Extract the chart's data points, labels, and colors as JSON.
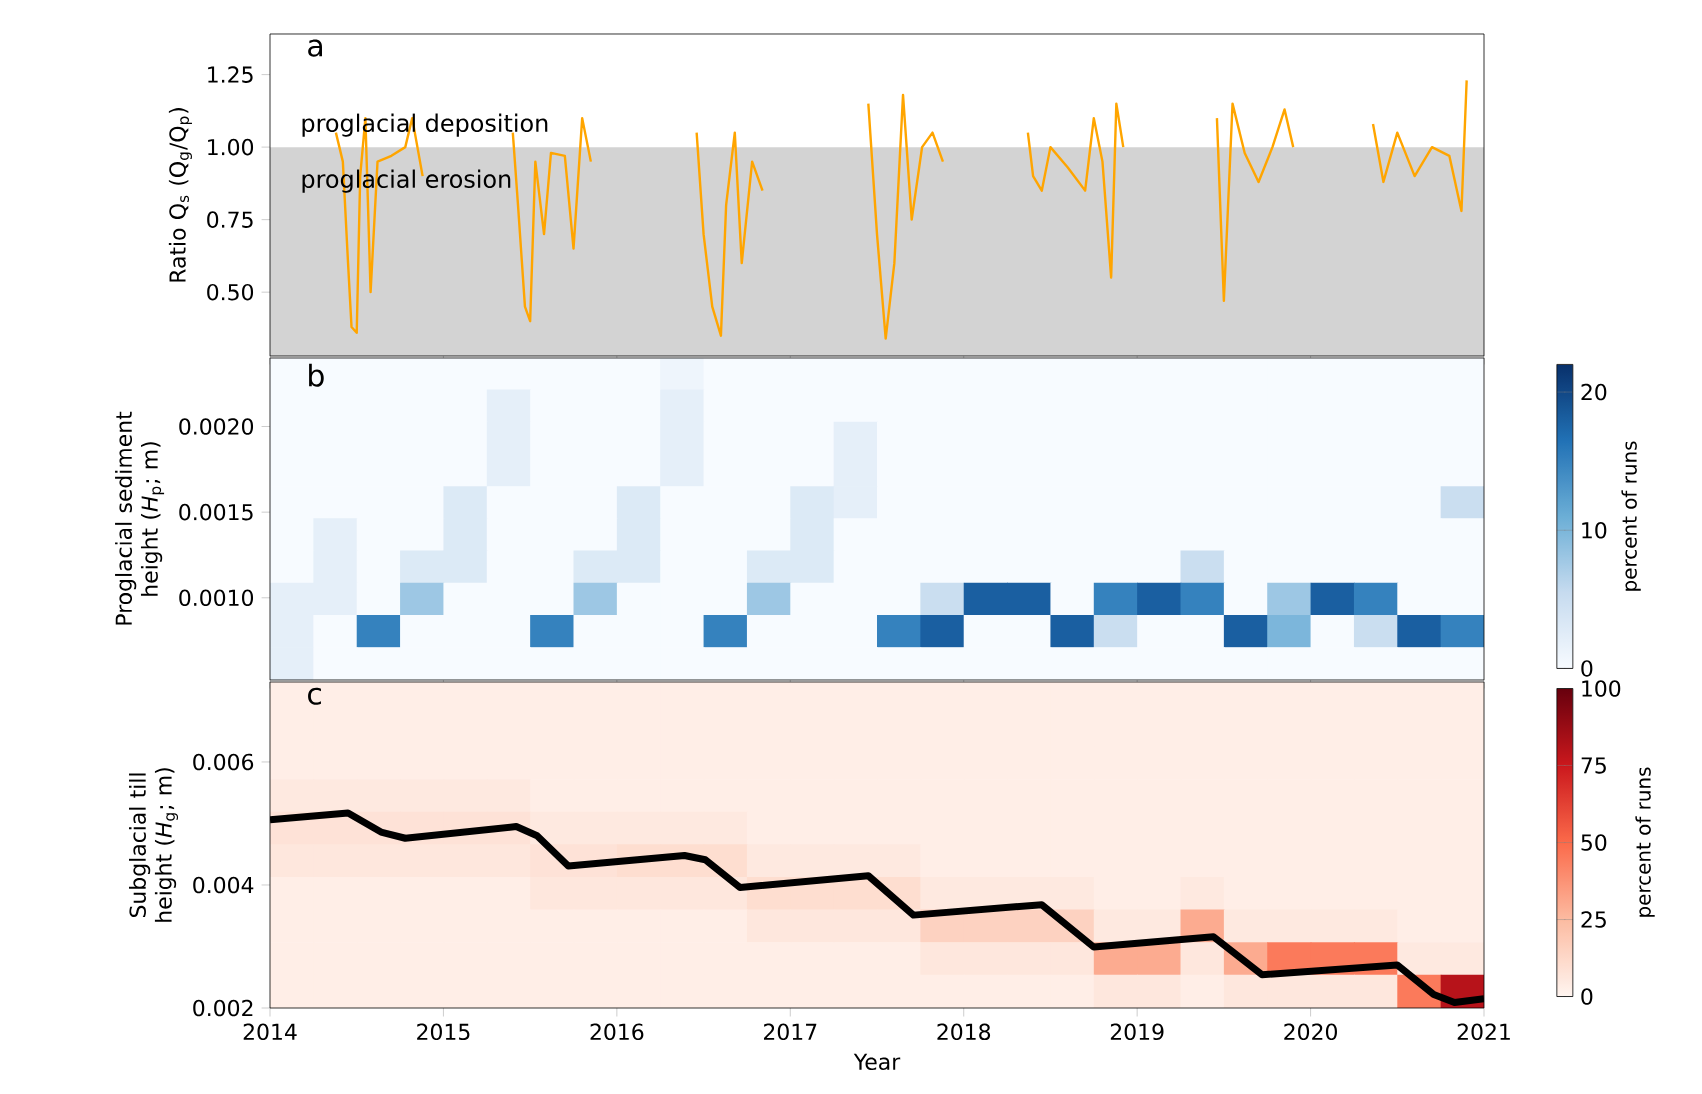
{
  "chart_data": [
    {
      "type": "line",
      "ylabel": "Ratio Q$_{s}$ (Q$_{g}$/Q$_{p}$)",
      "annotations": [
        "a",
        "proglacial deposition"
      ],
      "xlim": [
        2014,
        2021
      ],
      "xticks": [
        2014,
        2015,
        2016,
        2017,
        2018,
        2019,
        2020,
        2021
      ],
      "ylim": [
        0.28,
        1.39
      ],
      "yticks": [
        {
          "value": 0.5,
          "label": "0.50"
        },
        {
          "value": 0.75,
          "label": "0.75"
        },
        {
          "value": 1.0,
          "label": "1.00"
        },
        {
          "value": 1.25,
          "label": "1.25"
        }
      ],
      "tick_labels": "y",
      "bands": [
        {
          "axis": "y",
          "from": 0.28,
          "to": 1.0,
          "label": "proglacial erosion",
          "color": "#d3d3d3"
        }
      ],
      "series": [
        {
          "color": "#ffa500",
          "x": [
            2014.38,
            2014.42,
            2014.45,
            2014.47,
            2014.5,
            2014.52,
            2014.55,
            2014.58,
            2014.62,
            2014.7,
            2014.78,
            2014.82,
            2014.88,
            2014.95,
            2015.4,
            2015.43,
            2015.47,
            2015.5,
            2015.53,
            2015.58,
            2015.62,
            2015.7,
            2015.75,
            2015.8,
            2015.85,
            2015.95,
            2016.46,
            2016.5,
            2016.55,
            2016.6,
            2016.63,
            2016.68,
            2016.72,
            2016.78,
            2016.84,
            2016.95,
            2017.45,
            2017.5,
            2017.55,
            2017.6,
            2017.65,
            2017.7,
            2017.76,
            2017.82,
            2017.88,
            2017.95,
            2018.37,
            2018.4,
            2018.45,
            2018.5,
            2018.6,
            2018.7,
            2018.75,
            2018.8,
            2018.85,
            2018.88,
            2018.92,
            2019.0,
            2019.46,
            2019.5,
            2019.55,
            2019.62,
            2019.7,
            2019.78,
            2019.85,
            2019.9,
            2020.0,
            2020.36,
            2020.42,
            2020.5,
            2020.6,
            2020.7,
            2020.8,
            2020.87,
            2020.9
          ],
          "values": [
            1.05,
            0.95,
            0.6,
            0.38,
            0.36,
            0.9,
            1.1,
            0.5,
            0.95,
            0.97,
            1.0,
            1.1,
            0.9,
            null,
            1.05,
            0.8,
            0.45,
            0.4,
            0.95,
            0.7,
            0.98,
            0.97,
            0.65,
            1.1,
            0.95,
            null,
            1.05,
            0.7,
            0.45,
            0.35,
            0.8,
            1.05,
            0.6,
            0.95,
            0.85,
            null,
            1.15,
            0.7,
            0.34,
            0.6,
            1.18,
            0.75,
            1.0,
            1.05,
            0.95,
            null,
            1.05,
            0.9,
            0.85,
            1.0,
            0.93,
            0.85,
            1.1,
            0.95,
            0.55,
            1.15,
            1.0,
            null,
            1.1,
            0.47,
            1.15,
            0.98,
            0.88,
            1.0,
            1.13,
            1.0,
            null,
            1.08,
            0.88,
            1.05,
            0.9,
            1.0,
            0.97,
            0.78,
            1.23
          ]
        }
      ]
    },
    {
      "type": "heatmap",
      "ylabel": "Proglacial sediment height (*H*$_{p}$; m)",
      "annotations": [
        "b"
      ],
      "xlim": [
        2014,
        2021
      ],
      "xticks": [
        2014,
        2015,
        2016,
        2017,
        2018,
        2019,
        2020,
        2021
      ],
      "ylim": [
        0.00052,
        0.0024
      ],
      "yticks": [
        {
          "value": 0.001,
          "label": "0.0010"
        },
        {
          "value": 0.0015,
          "label": "0.0015"
        },
        {
          "value": 0.002,
          "label": "0.0020"
        }
      ],
      "tick_labels": "y",
      "clim": [
        0,
        22
      ],
      "cticks": [
        0,
        10,
        20
      ],
      "clabel": "percent of runs",
      "colors": [
        "#f7fbff",
        "#c6dbef",
        "#6baed6",
        "#2171b5",
        "#08306b"
      ],
      "cells": [
        [
          0,
          0,
          0,
          0,
          0,
          0,
          0,
          0,
          0,
          1,
          0,
          0,
          0,
          0,
          0,
          0,
          0,
          0,
          0,
          0,
          0,
          0,
          0,
          0,
          0,
          0,
          0,
          0
        ],
        [
          0,
          0,
          0,
          0,
          0,
          2,
          0,
          0,
          0,
          2,
          0,
          0,
          0,
          0,
          0,
          0,
          0,
          0,
          0,
          0,
          0,
          0,
          0,
          0,
          0,
          0,
          0,
          0
        ],
        [
          0,
          0,
          0,
          0,
          0,
          2,
          0,
          0,
          0,
          2,
          0,
          0,
          0,
          2,
          0,
          0,
          0,
          0,
          0,
          0,
          0,
          0,
          0,
          0,
          0,
          0,
          0,
          0
        ],
        [
          0,
          0,
          0,
          0,
          0,
          2,
          0,
          0,
          0,
          2,
          0,
          0,
          0,
          2,
          0,
          0,
          0,
          0,
          0,
          0,
          0,
          0,
          0,
          0,
          0,
          0,
          0,
          0
        ],
        [
          0,
          0,
          0,
          0,
          3,
          0,
          0,
          0,
          3,
          0,
          0,
          0,
          3,
          2,
          0,
          0,
          0,
          0,
          0,
          0,
          0,
          0,
          0,
          0,
          0,
          0,
          0,
          5
        ],
        [
          0,
          2,
          0,
          0,
          3,
          0,
          0,
          0,
          3,
          0,
          0,
          0,
          3,
          0,
          0,
          0,
          0,
          0,
          0,
          0,
          0,
          0,
          0,
          0,
          0,
          0,
          0,
          0
        ],
        [
          0,
          2,
          0,
          3,
          3,
          0,
          0,
          3,
          3,
          0,
          0,
          3,
          3,
          0,
          0,
          0,
          0,
          0,
          0,
          0,
          0,
          5,
          0,
          0,
          0,
          0,
          0,
          0
        ],
        [
          2,
          2,
          0,
          8,
          0,
          0,
          0,
          8,
          0,
          0,
          0,
          8,
          0,
          0,
          0,
          5,
          18,
          18,
          0,
          15,
          18,
          15,
          0,
          8,
          18,
          15,
          0,
          0
        ],
        [
          2,
          0,
          15,
          0,
          0,
          0,
          15,
          0,
          0,
          0,
          15,
          0,
          0,
          0,
          15,
          18,
          0,
          0,
          18,
          5,
          0,
          0,
          18,
          10,
          0,
          5,
          18,
          15
        ],
        [
          2,
          0,
          0,
          0,
          0,
          0,
          0,
          0,
          0,
          0,
          0,
          0,
          0,
          0,
          0,
          0,
          0,
          0,
          0,
          0,
          0,
          0,
          0,
          0,
          0,
          0,
          0,
          0
        ]
      ]
    },
    {
      "type": "heatmap",
      "xlabel": "Year",
      "ylabel": "Subglacial till height (*H*$_{g}$; m)",
      "annotations": [
        "c"
      ],
      "xlim": [
        2014,
        2021
      ],
      "xticks": [
        2014,
        2015,
        2016,
        2017,
        2018,
        2019,
        2020,
        2021
      ],
      "ylim": [
        0.002,
        0.0073
      ],
      "yticks": [
        0.002,
        0.004,
        0.006
      ],
      "clim": [
        0,
        100
      ],
      "cticks": [
        0,
        25,
        50,
        75,
        100
      ],
      "clabel": "percent of runs",
      "colors": [
        "#fff5f0",
        "#fcbba1",
        "#fb6a4a",
        "#cb181d",
        "#67000d"
      ],
      "cells": [
        [
          3,
          3,
          3,
          3,
          3,
          3,
          3,
          3,
          3,
          3,
          3,
          3,
          3,
          3,
          3,
          3,
          3,
          3,
          3,
          3,
          3,
          3,
          3,
          3,
          3,
          3,
          3,
          3
        ],
        [
          3,
          3,
          3,
          3,
          3,
          3,
          3,
          3,
          3,
          3,
          3,
          3,
          3,
          3,
          3,
          3,
          3,
          3,
          3,
          3,
          3,
          3,
          3,
          3,
          3,
          3,
          3,
          3
        ],
        [
          3,
          3,
          3,
          3,
          3,
          3,
          3,
          3,
          3,
          3,
          3,
          3,
          3,
          3,
          3,
          3,
          3,
          3,
          3,
          3,
          3,
          3,
          3,
          3,
          3,
          3,
          3,
          3
        ],
        [
          5,
          5,
          5,
          5,
          5,
          5,
          3,
          3,
          3,
          3,
          3,
          3,
          3,
          3,
          3,
          3,
          3,
          3,
          3,
          3,
          3,
          3,
          3,
          3,
          3,
          3,
          3,
          3
        ],
        [
          8,
          8,
          8,
          8,
          8,
          8,
          5,
          5,
          5,
          5,
          5,
          3,
          3,
          3,
          3,
          3,
          3,
          3,
          3,
          3,
          3,
          3,
          3,
          3,
          3,
          3,
          3,
          3
        ],
        [
          6,
          6,
          6,
          6,
          6,
          6,
          8,
          8,
          10,
          10,
          10,
          5,
          5,
          5,
          5,
          3,
          3,
          3,
          3,
          3,
          3,
          3,
          3,
          3,
          3,
          3,
          3,
          3
        ],
        [
          3,
          3,
          3,
          3,
          3,
          3,
          6,
          6,
          6,
          6,
          6,
          10,
          10,
          10,
          10,
          5,
          5,
          5,
          5,
          3,
          3,
          5,
          3,
          3,
          3,
          3,
          3,
          3
        ],
        [
          3,
          3,
          3,
          3,
          3,
          3,
          3,
          3,
          3,
          3,
          3,
          6,
          6,
          6,
          6,
          15,
          15,
          15,
          15,
          5,
          5,
          30,
          5,
          5,
          5,
          5,
          3,
          3
        ],
        [
          3,
          3,
          3,
          3,
          3,
          3,
          3,
          3,
          3,
          3,
          3,
          3,
          3,
          3,
          3,
          6,
          6,
          6,
          6,
          30,
          30,
          6,
          30,
          45,
          45,
          45,
          5,
          5
        ],
        [
          3,
          3,
          3,
          3,
          3,
          3,
          3,
          3,
          3,
          3,
          3,
          3,
          3,
          3,
          3,
          3,
          3,
          3,
          3,
          6,
          6,
          3,
          6,
          6,
          6,
          6,
          45,
          80
        ]
      ],
      "series": [
        {
          "type": "line",
          "color": "#000000",
          "x": [
            2014.0,
            2014.45,
            2014.64,
            2014.78,
            2015.42,
            2015.54,
            2015.72,
            2016.39,
            2016.51,
            2016.71,
            2017.45,
            2017.71,
            2018.45,
            2018.75,
            2019.44,
            2019.72,
            2020.5,
            2020.71,
            2020.83,
            2021.0
          ],
          "values": [
            0.00506,
            0.00517,
            0.00486,
            0.00476,
            0.00495,
            0.0048,
            0.00431,
            0.00448,
            0.00441,
            0.00396,
            0.00415,
            0.00351,
            0.00368,
            0.00299,
            0.00316,
            0.00254,
            0.0027,
            0.00222,
            0.00209,
            0.00215
          ]
        }
      ]
    }
  ]
}
